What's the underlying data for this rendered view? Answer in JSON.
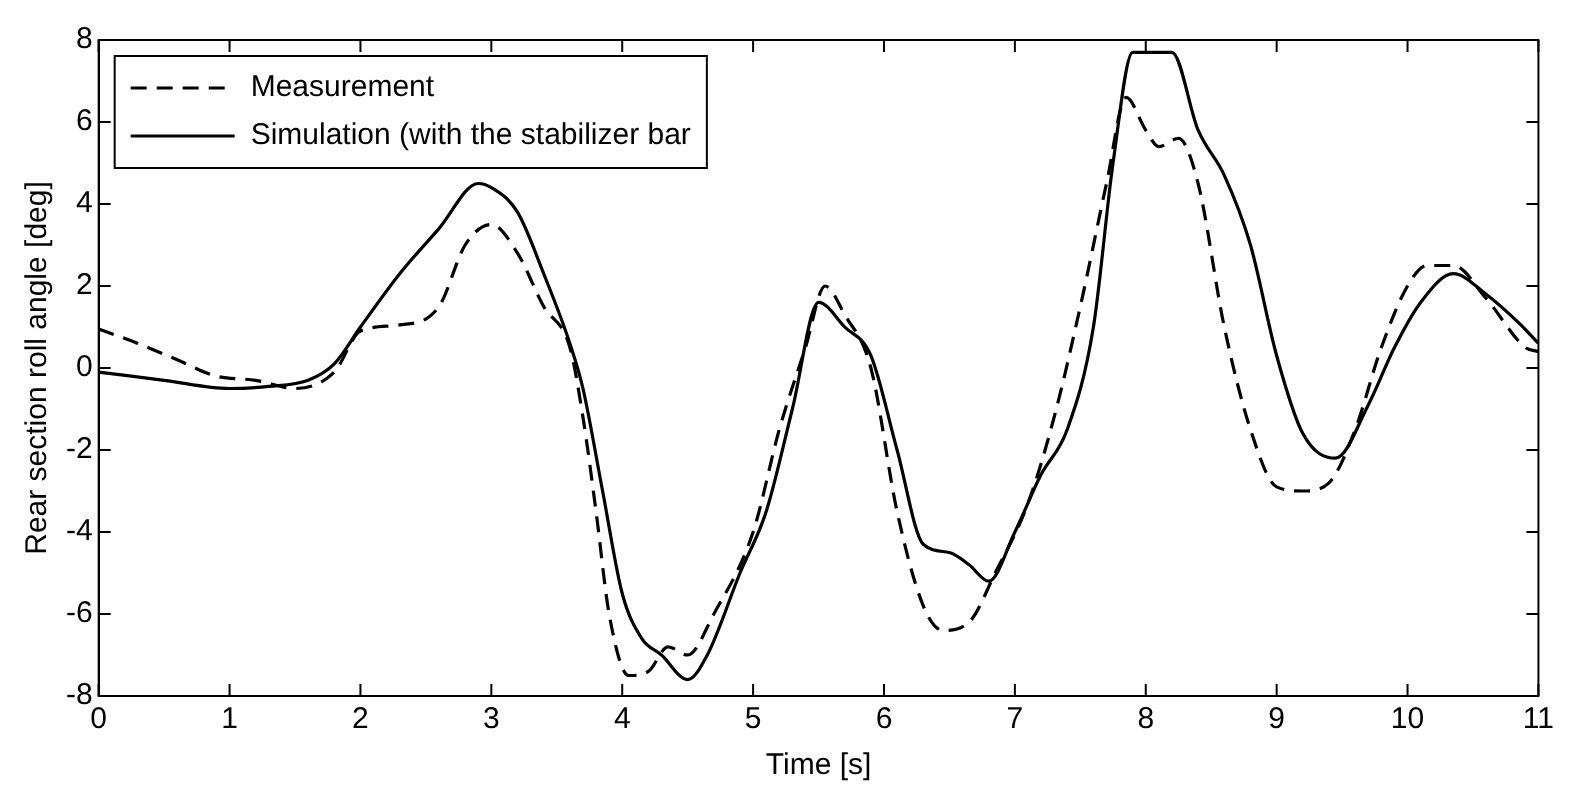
{
  "chart_data": {
    "type": "line",
    "xlabel": "Time [s]",
    "ylabel": "Rear section roll angle [deg]",
    "xlim": [
      0,
      11
    ],
    "xticks": [
      0,
      1,
      2,
      3,
      4,
      5,
      6,
      7,
      8,
      9,
      10,
      11
    ],
    "ylim": [
      -8,
      8
    ],
    "yticks": [
      -8,
      -6,
      -4,
      -2,
      0,
      2,
      4,
      6,
      8
    ],
    "grid": false,
    "legend": "top left",
    "marker": "none",
    "series": [
      {
        "name": "Measurement",
        "color": "#000000",
        "line_style": "dashed",
        "x": [
          0,
          0.3,
          0.6,
          0.9,
          1.2,
          1.5,
          1.8,
          2.0,
          2.3,
          2.6,
          2.8,
          3.0,
          3.2,
          3.4,
          3.6,
          3.7,
          3.8,
          3.9,
          4.05,
          4.2,
          4.35,
          4.5,
          4.7,
          5.0,
          5.2,
          5.4,
          5.55,
          5.7,
          5.9,
          6.1,
          6.3,
          6.45,
          6.65,
          6.85,
          7.1,
          7.3,
          7.5,
          7.7,
          7.85,
          8.0,
          8.1,
          8.25,
          8.4,
          8.6,
          8.8,
          9.0,
          9.2,
          9.4,
          9.6,
          9.8,
          10.0,
          10.15,
          10.35,
          10.6,
          10.9,
          11
        ],
        "values": [
          0.95,
          0.6,
          0.2,
          -0.2,
          -0.3,
          -0.5,
          -0.1,
          0.9,
          1.05,
          1.5,
          3.0,
          3.5,
          2.8,
          1.5,
          0.5,
          -1.2,
          -3.5,
          -6,
          -7.5,
          -7.4,
          -6.8,
          -7.0,
          -6,
          -4.0,
          -1.5,
          0.5,
          2.0,
          1.3,
          0,
          -3.5,
          -5.8,
          -6.4,
          -6.2,
          -5.0,
          -3.3,
          -1.2,
          1.5,
          4.5,
          6.6,
          5.8,
          5.4,
          5.6,
          4.5,
          1.0,
          -1.5,
          -2.9,
          -3.0,
          -2.8,
          -1.5,
          0.5,
          2.0,
          2.5,
          2.5,
          1.7,
          0.5,
          0.4
        ]
      },
      {
        "name": "Simulation (with the stabilizer bar",
        "color": "#000000",
        "line_style": "solid",
        "x": [
          0,
          0.5,
          1,
          1.3,
          1.6,
          1.8,
          2.0,
          2.3,
          2.6,
          2.9,
          3.0,
          3.2,
          3.4,
          3.6,
          3.7,
          3.85,
          4.0,
          4.15,
          4.3,
          4.5,
          4.65,
          4.9,
          5.1,
          5.3,
          5.5,
          5.7,
          5.9,
          6.1,
          6.3,
          6.5,
          6.65,
          6.8,
          7.0,
          7.2,
          7.4,
          7.6,
          7.75,
          7.9,
          8.2,
          8.4,
          8.6,
          8.8,
          9.0,
          9.2,
          9.45,
          9.7,
          9.9,
          10.1,
          10.35,
          10.6,
          10.85,
          11
        ],
        "values": [
          -0.1,
          -0.3,
          -0.5,
          -0.45,
          -0.3,
          0.1,
          1.0,
          2.3,
          3.4,
          4.5,
          4.4,
          3.8,
          2.3,
          0.6,
          -0.5,
          -3,
          -5.5,
          -6.6,
          -7.0,
          -7.6,
          -7.0,
          -5,
          -3.5,
          -1,
          1.6,
          1.0,
          0.3,
          -2.0,
          -4.3,
          -4.5,
          -4.8,
          -5.2,
          -4.0,
          -2.6,
          -1.5,
          1.0,
          5.0,
          7.7,
          7.7,
          5.8,
          4.7,
          3.0,
          0.3,
          -1.6,
          -2.2,
          -0.9,
          0.5,
          1.6,
          2.3,
          1.8,
          1.1,
          0.6
        ]
      }
    ]
  }
}
